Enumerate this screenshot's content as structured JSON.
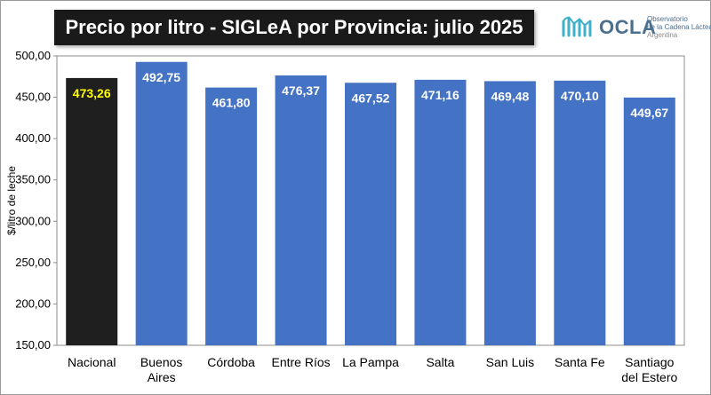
{
  "header": {
    "title": "Precio por litro - SIGLeA por Provincia: julio 2025"
  },
  "logo": {
    "word": "OCLA",
    "line1": "Observatorio",
    "line2": "de la Cadena Láctea",
    "line3": "Argentina"
  },
  "colors": {
    "highlight_bar": "#1f1f1f",
    "bar": "#4472c4",
    "highlight_label": "#ffff00",
    "label": "#ffffff",
    "plot_background": "#ffffff"
  },
  "chart_data": {
    "type": "bar",
    "title": "Precio por litro - SIGLeA por Provincia: julio 2025",
    "xlabel": "",
    "ylabel": "$/litro de leche",
    "ylim": [
      150,
      500
    ],
    "yticks": [
      150,
      200,
      250,
      300,
      350,
      400,
      450,
      500
    ],
    "ytick_labels": [
      "150,00",
      "200,00",
      "250,00",
      "300,00",
      "350,00",
      "400,00",
      "450,00",
      "500,00"
    ],
    "categories": [
      [
        "Nacional"
      ],
      [
        "Buenos",
        "Aires"
      ],
      [
        "Córdoba"
      ],
      [
        "Entre Ríos"
      ],
      [
        "La Pampa"
      ],
      [
        "Salta"
      ],
      [
        "San Luis"
      ],
      [
        "Santa Fe"
      ],
      [
        "Santiago",
        "del Estero"
      ]
    ],
    "values": [
      473.26,
      492.75,
      461.8,
      476.37,
      467.52,
      471.16,
      469.48,
      470.1,
      449.67
    ],
    "value_labels": [
      "473,26",
      "492,75",
      "461,80",
      "476,37",
      "467,52",
      "471,16",
      "469,48",
      "470,10",
      "449,67"
    ],
    "highlight_index": 0,
    "grid": false,
    "legend": "none"
  }
}
